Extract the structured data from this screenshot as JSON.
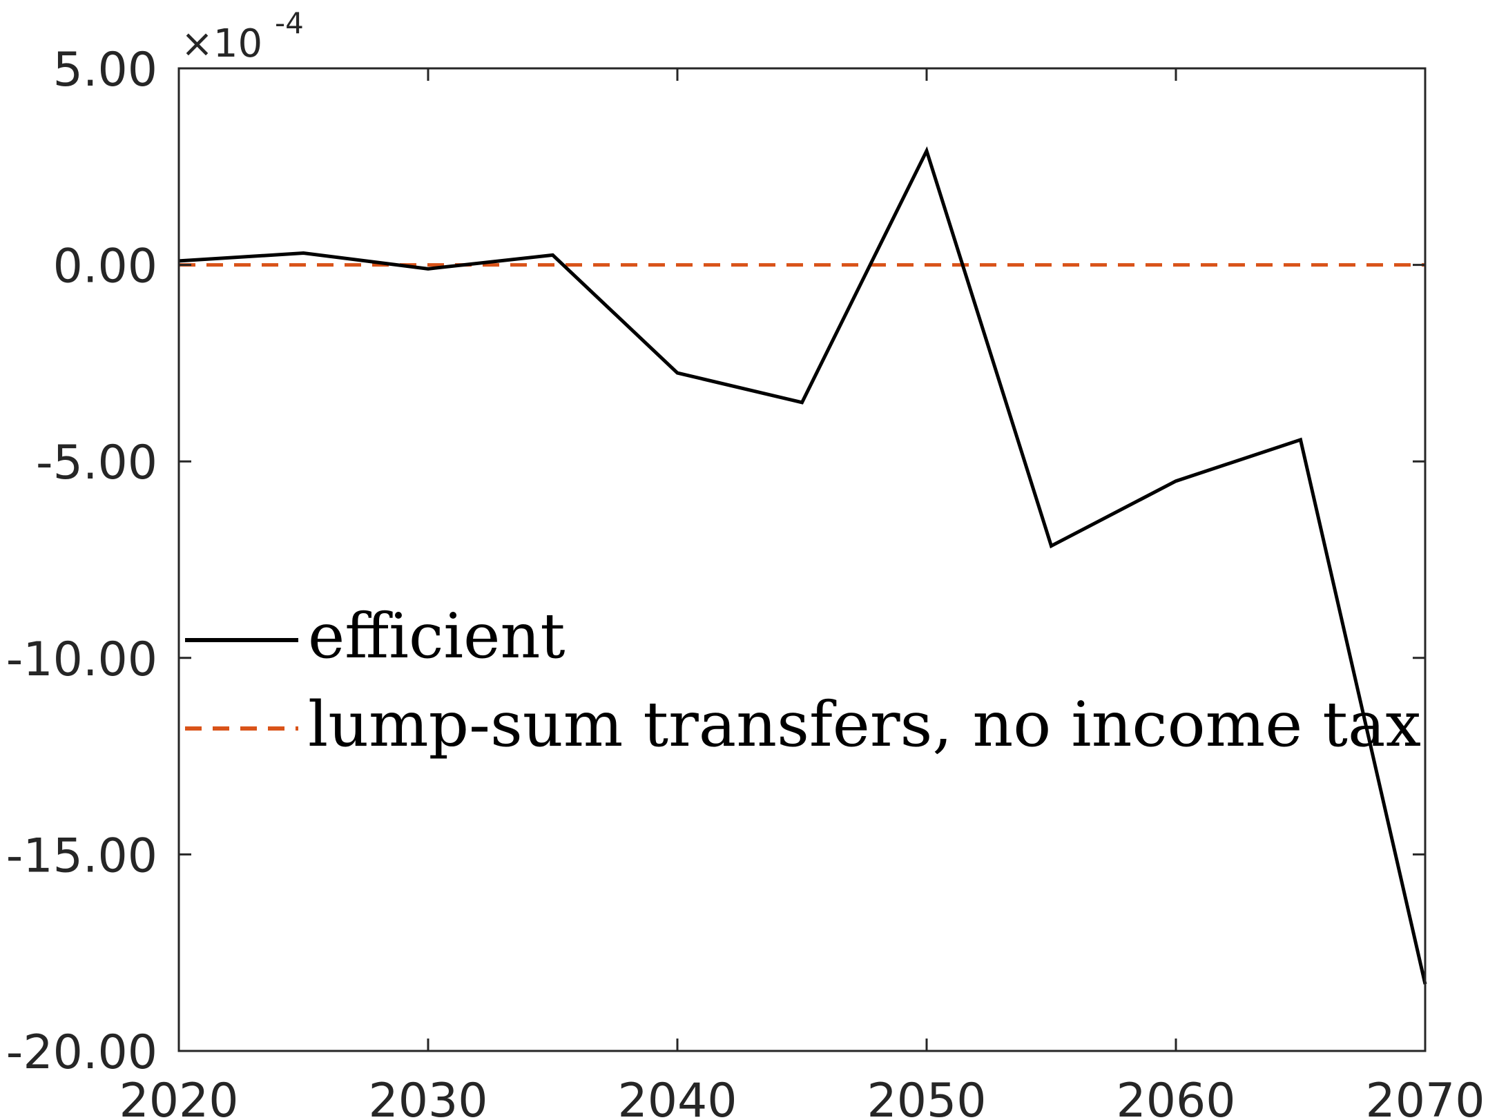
{
  "chart_data": {
    "type": "line",
    "title": "",
    "xlabel": "",
    "ylabel": "",
    "y_exponent_label": "×10",
    "y_exponent_power": "-4",
    "xlim": [
      2020,
      2070
    ],
    "ylim": [
      -20,
      5
    ],
    "x_ticks": [
      2020,
      2030,
      2040,
      2050,
      2060,
      2070
    ],
    "x_tick_labels": [
      "2020",
      "2030",
      "2040",
      "2050",
      "2060",
      "2070"
    ],
    "y_ticks": [
      5,
      0,
      -5,
      -10,
      -15,
      -20
    ],
    "y_tick_labels": [
      "5.00",
      "0.00",
      "-5.00",
      "-10.00",
      "-15.00",
      "-20.00"
    ],
    "grid": false,
    "legend_position": "center-left",
    "series": [
      {
        "name": "efficient",
        "color": "#000000",
        "style": "solid",
        "x": [
          2020,
          2025,
          2030,
          2035,
          2040,
          2045,
          2050,
          2055,
          2060,
          2065,
          2070
        ],
        "y": [
          0.1,
          0.3,
          -0.1,
          0.25,
          -2.75,
          -3.5,
          2.9,
          -7.15,
          -5.5,
          -4.45,
          -18.3
        ]
      },
      {
        "name": "lump-sum transfers, no income tax",
        "color": "#d95319",
        "style": "dashed",
        "x": [
          2020,
          2070
        ],
        "y": [
          0,
          0
        ]
      }
    ]
  }
}
